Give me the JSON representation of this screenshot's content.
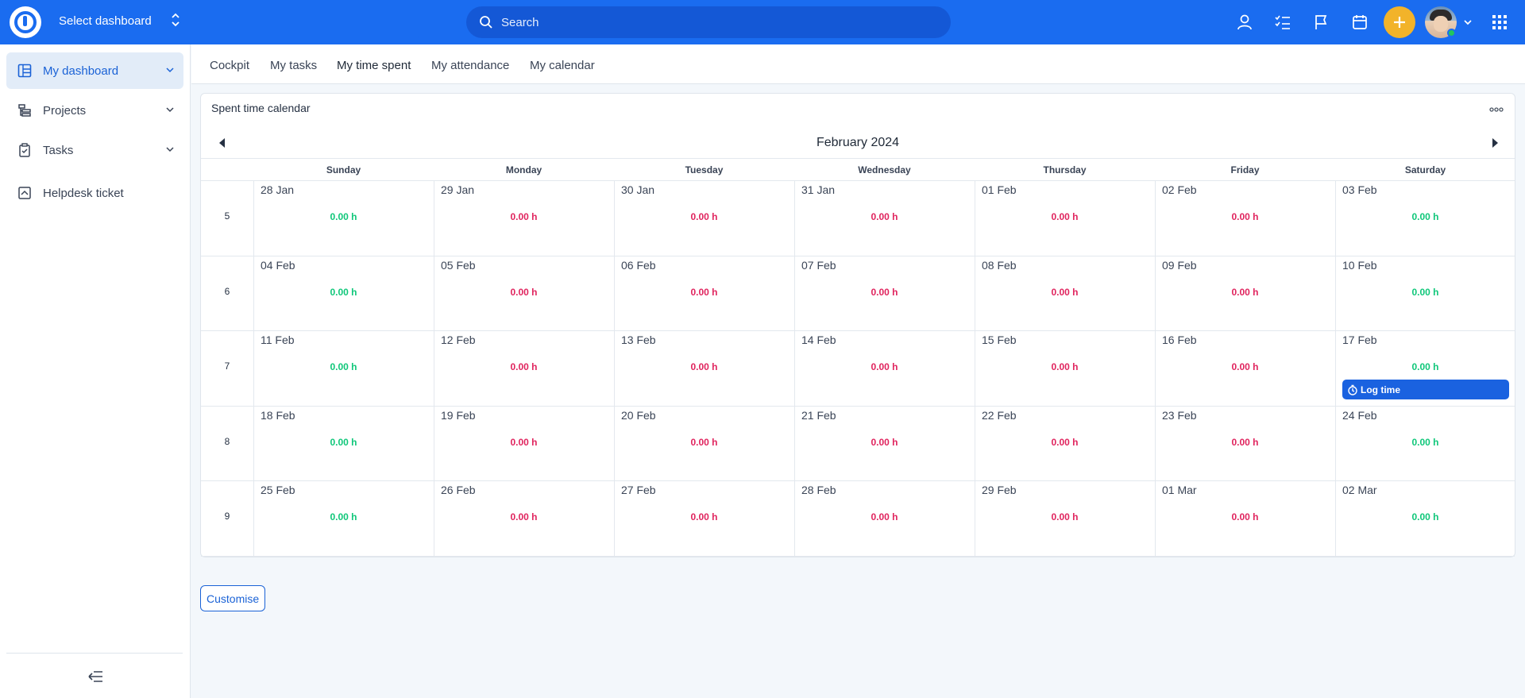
{
  "header": {
    "dashboard_select": "Select dashboard",
    "search_placeholder": "Search"
  },
  "sidebar": {
    "items": [
      {
        "label": "My dashboard",
        "icon": "dashboard-icon",
        "active": true,
        "has_chevron": true
      },
      {
        "label": "Projects",
        "icon": "projects-icon",
        "active": false,
        "has_chevron": true
      },
      {
        "label": "Tasks",
        "icon": "tasks-icon",
        "active": false,
        "has_chevron": true
      },
      {
        "label": "Helpdesk ticket",
        "icon": "helpdesk-icon",
        "active": false,
        "has_chevron": false
      }
    ]
  },
  "tabs": [
    {
      "label": "Cockpit",
      "active": false
    },
    {
      "label": "My tasks",
      "active": false
    },
    {
      "label": "My time spent",
      "active": true
    },
    {
      "label": "My attendance",
      "active": false
    },
    {
      "label": "My calendar",
      "active": false
    }
  ],
  "calendar": {
    "title": "Spent time calendar",
    "month": "February 2024",
    "weekdays": [
      "Sunday",
      "Monday",
      "Tuesday",
      "Wednesday",
      "Thursday",
      "Friday",
      "Saturday"
    ],
    "weeks": [
      {
        "number": "5",
        "days": [
          {
            "date": "28 Jan",
            "hours": "0.00 h",
            "status": "green"
          },
          {
            "date": "29 Jan",
            "hours": "0.00 h",
            "status": "red"
          },
          {
            "date": "30 Jan",
            "hours": "0.00 h",
            "status": "red"
          },
          {
            "date": "31 Jan",
            "hours": "0.00 h",
            "status": "red"
          },
          {
            "date": "01 Feb",
            "hours": "0.00 h",
            "status": "red"
          },
          {
            "date": "02 Feb",
            "hours": "0.00 h",
            "status": "red"
          },
          {
            "date": "03 Feb",
            "hours": "0.00 h",
            "status": "green"
          }
        ]
      },
      {
        "number": "6",
        "days": [
          {
            "date": "04 Feb",
            "hours": "0.00 h",
            "status": "green"
          },
          {
            "date": "05 Feb",
            "hours": "0.00 h",
            "status": "red"
          },
          {
            "date": "06 Feb",
            "hours": "0.00 h",
            "status": "red"
          },
          {
            "date": "07 Feb",
            "hours": "0.00 h",
            "status": "red"
          },
          {
            "date": "08 Feb",
            "hours": "0.00 h",
            "status": "red"
          },
          {
            "date": "09 Feb",
            "hours": "0.00 h",
            "status": "red"
          },
          {
            "date": "10 Feb",
            "hours": "0.00 h",
            "status": "green"
          }
        ]
      },
      {
        "number": "7",
        "days": [
          {
            "date": "11 Feb",
            "hours": "0.00 h",
            "status": "green"
          },
          {
            "date": "12 Feb",
            "hours": "0.00 h",
            "status": "red"
          },
          {
            "date": "13 Feb",
            "hours": "0.00 h",
            "status": "red"
          },
          {
            "date": "14 Feb",
            "hours": "0.00 h",
            "status": "red"
          },
          {
            "date": "15 Feb",
            "hours": "0.00 h",
            "status": "red"
          },
          {
            "date": "16 Feb",
            "hours": "0.00 h",
            "status": "red"
          },
          {
            "date": "17 Feb",
            "hours": "0.00 h",
            "status": "green"
          }
        ]
      },
      {
        "number": "8",
        "days": [
          {
            "date": "18 Feb",
            "hours": "0.00 h",
            "status": "green"
          },
          {
            "date": "19 Feb",
            "hours": "0.00 h",
            "status": "red"
          },
          {
            "date": "20 Feb",
            "hours": "0.00 h",
            "status": "red"
          },
          {
            "date": "21 Feb",
            "hours": "0.00 h",
            "status": "red"
          },
          {
            "date": "22 Feb",
            "hours": "0.00 h",
            "status": "red"
          },
          {
            "date": "23 Feb",
            "hours": "0.00 h",
            "status": "red"
          },
          {
            "date": "24 Feb",
            "hours": "0.00 h",
            "status": "green"
          }
        ]
      },
      {
        "number": "9",
        "days": [
          {
            "date": "25 Feb",
            "hours": "0.00 h",
            "status": "green"
          },
          {
            "date": "26 Feb",
            "hours": "0.00 h",
            "status": "red"
          },
          {
            "date": "27 Feb",
            "hours": "0.00 h",
            "status": "red"
          },
          {
            "date": "28 Feb",
            "hours": "0.00 h",
            "status": "red"
          },
          {
            "date": "29 Feb",
            "hours": "0.00 h",
            "status": "red"
          },
          {
            "date": "01 Mar",
            "hours": "0.00 h",
            "status": "red"
          },
          {
            "date": "02 Mar",
            "hours": "0.00 h",
            "status": "green"
          }
        ]
      }
    ],
    "log_time_label": "Log time"
  },
  "footer": {
    "customise_label": "Customise"
  },
  "colors": {
    "brand": "#1a6cf0",
    "green_hours": "#10c77a",
    "red_hours": "#e0245e",
    "plus_button": "#f2b32a"
  }
}
